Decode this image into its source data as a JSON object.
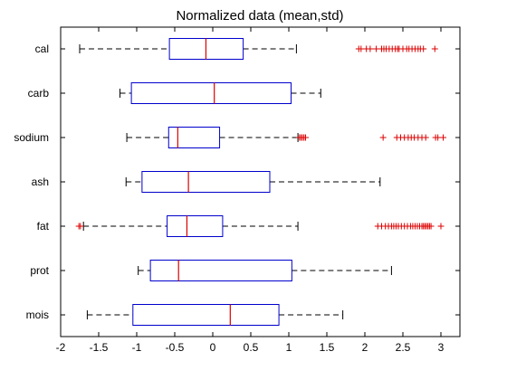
{
  "chart_data": {
    "type": "boxplot",
    "orientation": "horizontal",
    "title": "Normalized data (mean,std)",
    "xlabel": "",
    "ylabel": "",
    "xlim": [
      -2,
      3.25
    ],
    "xticks": [
      -2,
      -1.5,
      -1,
      -0.5,
      0,
      0.5,
      1,
      1.5,
      2,
      2.5,
      3
    ],
    "grid": false,
    "colors": {
      "box": "#0000cc",
      "median": "#dd0000",
      "whisker": "#000000",
      "outlier": "#dd0000"
    },
    "categories": [
      "cal",
      "carb",
      "sodium",
      "ash",
      "fat",
      "prot",
      "mois"
    ],
    "boxes": [
      {
        "label": "cal",
        "whisker_low": -1.75,
        "q1": -0.57,
        "median": -0.09,
        "q3": 0.4,
        "whisker_high": 1.1,
        "outliers": [
          1.92,
          1.95,
          2.02,
          2.07,
          2.15,
          2.22,
          2.25,
          2.28,
          2.32,
          2.36,
          2.4,
          2.43,
          2.45,
          2.5,
          2.55,
          2.58,
          2.62,
          2.66,
          2.7,
          2.73,
          2.77,
          2.92
        ]
      },
      {
        "label": "carb",
        "whisker_low": -1.22,
        "q1": -1.07,
        "median": 0.02,
        "q3": 1.03,
        "whisker_high": 1.42,
        "outliers": []
      },
      {
        "label": "sodium",
        "whisker_low": -1.13,
        "q1": -0.58,
        "median": -0.46,
        "q3": 0.09,
        "whisker_high": 1.12,
        "outliers": [
          1.14,
          1.16,
          1.18,
          1.2,
          1.22,
          2.24,
          2.42,
          2.47,
          2.52,
          2.57,
          2.61,
          2.65,
          2.7,
          2.75,
          2.8,
          2.93,
          2.96,
          3.03
        ]
      },
      {
        "label": "ash",
        "whisker_low": -1.14,
        "q1": -0.93,
        "median": -0.32,
        "q3": 0.75,
        "whisker_high": 2.2,
        "outliers": []
      },
      {
        "label": "fat",
        "whisker_low": -1.7,
        "q1": -0.6,
        "median": -0.34,
        "q3": 0.13,
        "whisker_high": 1.12,
        "outliers": [
          -1.76,
          -1.74,
          2.17,
          2.22,
          2.27,
          2.31,
          2.35,
          2.38,
          2.41,
          2.44,
          2.48,
          2.52,
          2.56,
          2.6,
          2.63,
          2.66,
          2.69,
          2.72,
          2.75,
          2.77,
          2.79,
          2.81,
          2.83,
          2.85,
          2.87,
          3.0
        ]
      },
      {
        "label": "prot",
        "whisker_low": -0.98,
        "q1": -0.82,
        "median": -0.45,
        "q3": 1.04,
        "whisker_high": 2.35,
        "outliers": []
      },
      {
        "label": "mois",
        "whisker_low": -1.65,
        "q1": -1.05,
        "median": 0.23,
        "q3": 0.87,
        "whisker_high": 1.71,
        "outliers": []
      }
    ]
  }
}
